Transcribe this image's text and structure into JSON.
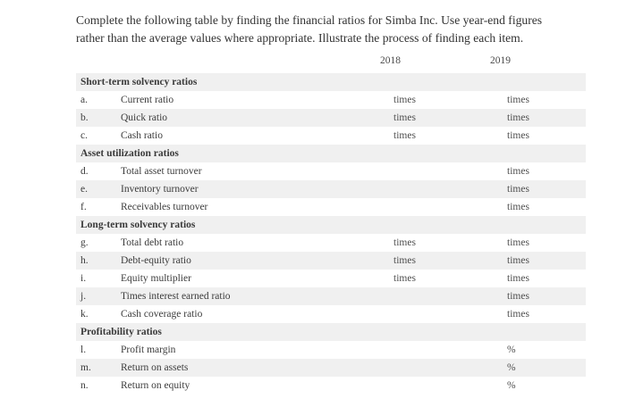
{
  "intro_lines": [
    "Complete the following table by finding the financial ratios for Simba Inc. Use year-end figures",
    "rather than the average values where appropriate. Illustrate the process of finding each item."
  ],
  "table": {
    "year_headers": [
      "2018",
      "2019"
    ],
    "sections": [
      {
        "title": "Short-term solvency ratios",
        "rows": [
          {
            "letter": "a.",
            "label": "Current ratio",
            "y2018": "times",
            "y2019": "times"
          },
          {
            "letter": "b.",
            "label": "Quick ratio",
            "y2018": "times",
            "y2019": "times"
          },
          {
            "letter": "c.",
            "label": "Cash ratio",
            "y2018": "times",
            "y2019": "times"
          }
        ]
      },
      {
        "title": "Asset utilization ratios",
        "rows": [
          {
            "letter": "d.",
            "label": "Total asset turnover",
            "y2018": "",
            "y2019": "times"
          },
          {
            "letter": "e.",
            "label": "Inventory turnover",
            "y2018": "",
            "y2019": "times"
          },
          {
            "letter": "f.",
            "label": "Receivables turnover",
            "y2018": "",
            "y2019": "times"
          }
        ]
      },
      {
        "title": "Long-term solvency ratios",
        "rows": [
          {
            "letter": "g.",
            "label": "Total debt ratio",
            "y2018": "times",
            "y2019": "times"
          },
          {
            "letter": "h.",
            "label": "Debt-equity ratio",
            "y2018": "times",
            "y2019": "times"
          },
          {
            "letter": "i.",
            "label": "Equity multiplier",
            "y2018": "times",
            "y2019": "times"
          },
          {
            "letter": "j.",
            "label": "Times interest earned ratio",
            "y2018": "",
            "y2019": "times"
          },
          {
            "letter": "k.",
            "label": "Cash coverage ratio",
            "y2018": "",
            "y2019": "times"
          }
        ]
      },
      {
        "title": "Profitability ratios",
        "rows": [
          {
            "letter": "l.",
            "label": "Profit margin",
            "y2018": "",
            "y2019": "%"
          },
          {
            "letter": "m.",
            "label": "Return on assets",
            "y2018": "",
            "y2019": "%"
          },
          {
            "letter": "n.",
            "label": "Return on equity",
            "y2018": "",
            "y2019": "%"
          }
        ]
      }
    ]
  },
  "colors": {
    "row_shade": "#f0f0f0",
    "text": "#3c3c3c",
    "unit_text": "#4f4f4f",
    "background": "#ffffff"
  }
}
